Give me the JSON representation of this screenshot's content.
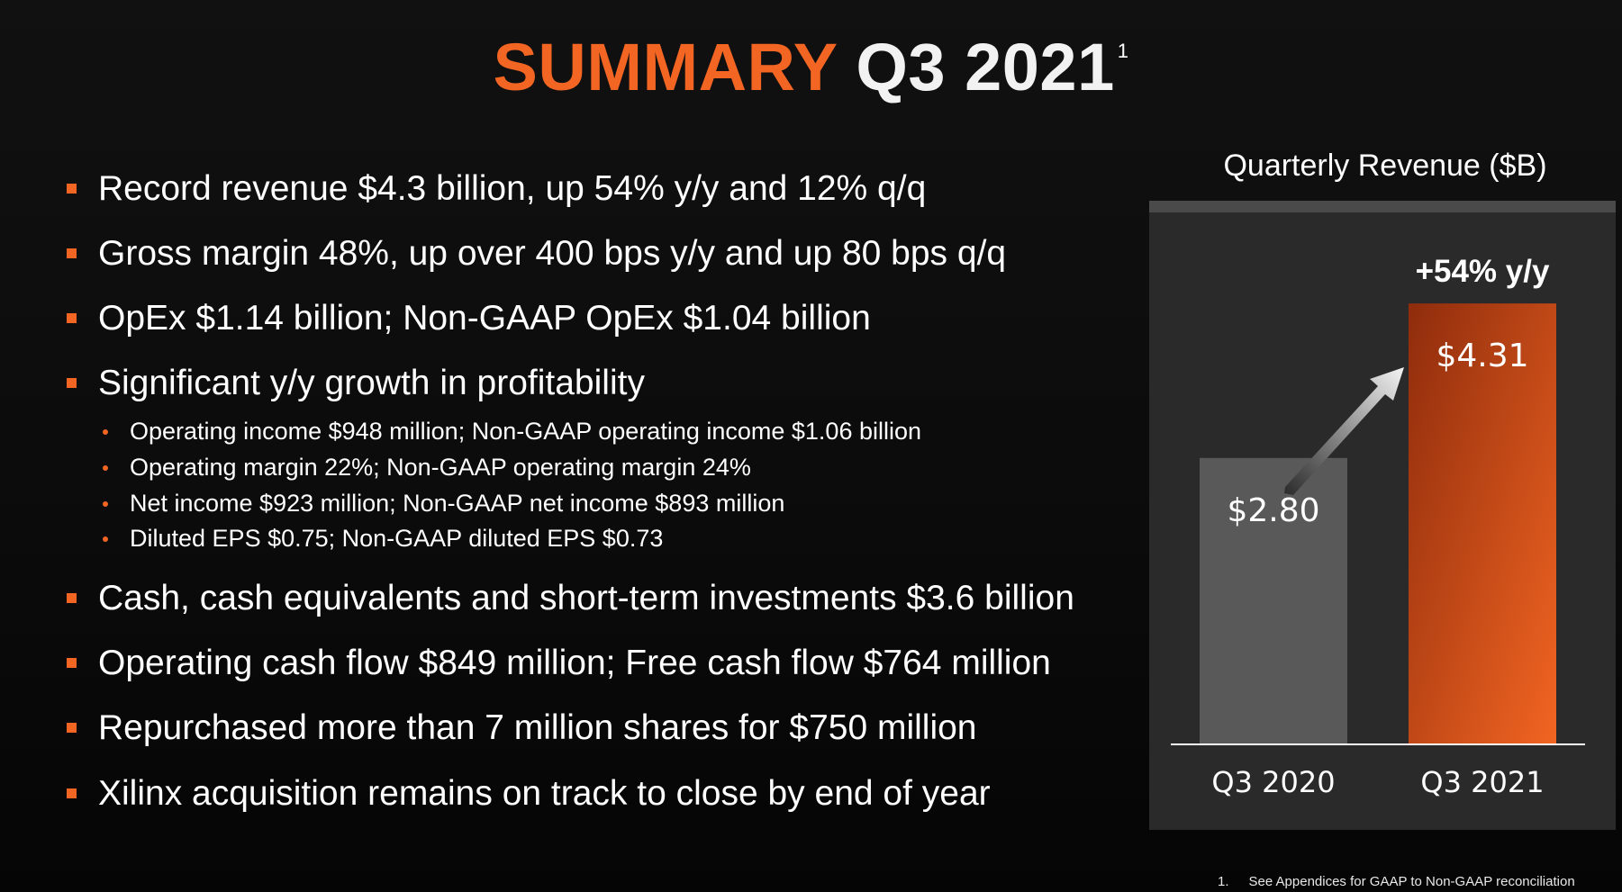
{
  "title": {
    "accent": "SUMMARY",
    "rest": "Q3 2021",
    "footnote_marker": "1"
  },
  "bullets": [
    "Record revenue $4.3 billion, up 54% y/y and 12% q/q",
    "Gross margin 48%, up over 400 bps y/y and up 80 bps q/q",
    "OpEx $1.14 billion; Non-GAAP OpEx $1.04 billion",
    "Significant y/y growth in profitability",
    "Cash, cash equivalents and short-term investments $3.6 billion",
    "Operating cash flow $849 million; Free cash flow $764 million",
    "Repurchased more than 7 million shares for $750 million",
    "Xilinx acquisition remains on track to close by end of year"
  ],
  "sub_bullets": [
    "Operating income $948 million; Non-GAAP operating income $1.06 billion",
    "Operating margin 22%; Non-GAAP operating margin 24%",
    "Net income $923 million; Non-GAAP net income $893 million",
    "Diluted EPS $0.75; Non-GAAP diluted EPS $0.73"
  ],
  "footnote": {
    "number": "1.",
    "text": "See Appendices for GAAP to Non-GAAP reconciliation"
  },
  "colors": {
    "accent": "#f26522",
    "bar_prior": "#595959",
    "bar_current_top": "#8f2c0c",
    "bar_current_bottom": "#f26522"
  },
  "chart_data": {
    "type": "bar",
    "title": "Quarterly Revenue ($B)",
    "categories": [
      "Q3 2020",
      "Q3 2021"
    ],
    "values": [
      2.8,
      4.31
    ],
    "data_labels": [
      "$2.80",
      "$4.31"
    ],
    "annotation": "+54% y/y",
    "ylim": [
      0,
      5.2
    ],
    "grid": false,
    "legend": "none"
  }
}
